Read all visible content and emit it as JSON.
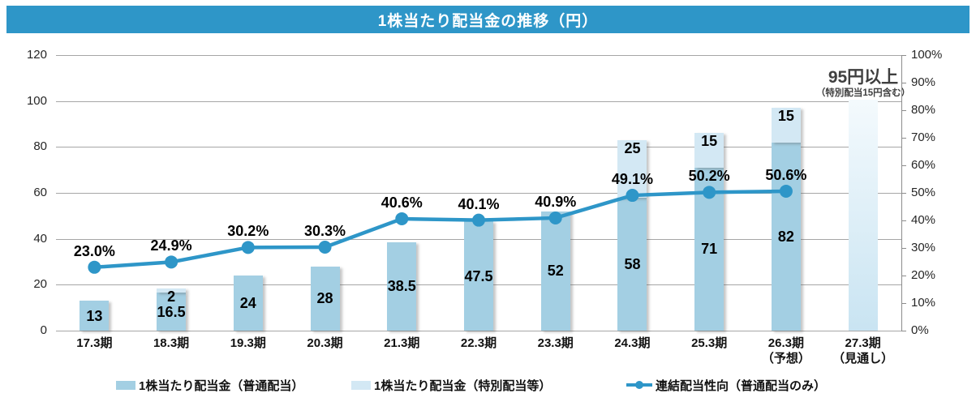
{
  "title": "1株当たり配当金の推移（円）",
  "colors": {
    "title_bg": "#2e96c8",
    "bar_normal": "#a3cfe3",
    "bar_special": "#d3e8f4",
    "line": "#2e96c8",
    "grid": "#a6a6a6",
    "axis": "#8c8c8c",
    "annotation_text": "#3f3f3f",
    "forecast_top": "#f4fafd",
    "forecast_bottom": "#c9e4f2"
  },
  "annotation": {
    "line1": "95円以上",
    "line2": "（特別配当15円含む）"
  },
  "legend": {
    "items": [
      {
        "label": "1株当たり配当金（普通配当）",
        "swatch": "normal"
      },
      {
        "label": "1株当たり配当金（特別配当等）",
        "swatch": "special"
      },
      {
        "label": "連結配当性向（普通配当のみ）",
        "swatch": "line"
      }
    ]
  },
  "chart_data": {
    "type": "bar",
    "subtype": "stacked bars + line combo, dual axis",
    "title": "1株当たり配当金の推移（円）",
    "categories": [
      [
        "17.3期"
      ],
      [
        "18.3期"
      ],
      [
        "19.3期"
      ],
      [
        "20.3期"
      ],
      [
        "21.3期"
      ],
      [
        "22.3期"
      ],
      [
        "23.3期"
      ],
      [
        "24.3期"
      ],
      [
        "25.3期"
      ],
      [
        "26.3期",
        "（予想）"
      ],
      [
        "27.3期",
        "（見通し）"
      ]
    ],
    "series": [
      {
        "name": "1株当たり配当金（普通配当）",
        "type": "bar",
        "axis": "left",
        "values": [
          13,
          16.5,
          24,
          28,
          38.5,
          47.5,
          52,
          58,
          71,
          82,
          null
        ]
      },
      {
        "name": "1株当たり配当金（特別配当等）",
        "type": "bar",
        "axis": "left",
        "values": [
          null,
          2,
          null,
          null,
          null,
          null,
          null,
          25,
          15,
          15,
          null
        ]
      },
      {
        "name": "連結配当性向（普通配当のみ）",
        "type": "line",
        "axis": "right",
        "values": [
          23.0,
          24.9,
          30.2,
          30.3,
          40.6,
          40.1,
          40.9,
          49.1,
          50.2,
          50.6,
          null
        ]
      }
    ],
    "forecast_bar": {
      "category_index": 10,
      "estimated_top_value": 100.5,
      "label": "95円以上",
      "sublabel": "（特別配当15円含む）"
    },
    "left_axis": {
      "min": 0,
      "max": 120,
      "step": 20
    },
    "right_axis": {
      "min": 0,
      "max": 100,
      "step": 10,
      "suffix": "%"
    },
    "grid": "horizontal gridlines at left-axis steps",
    "legend_position": "bottom"
  }
}
